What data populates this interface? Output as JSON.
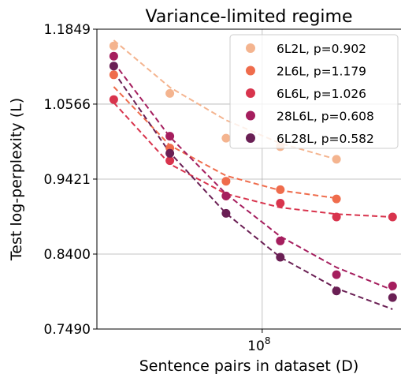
{
  "chart_data": {
    "type": "scatter",
    "title": "Variance-limited regime",
    "xlabel": "Sentence pairs in dataset (D)",
    "ylabel": "Test log-perplexity (L)",
    "x_scale": "log",
    "y_scale": "log",
    "xlim": [
      13000000,
      560000000
    ],
    "ylim": [
      0.749,
      1.1849
    ],
    "x_ticks": [
      {
        "base": "10",
        "exp": "8",
        "value": 100000000
      }
    ],
    "y_ticks": [
      {
        "label": "1.1849",
        "value": 1.1849
      },
      {
        "label": "1.0566",
        "value": 1.0566
      },
      {
        "label": "0.9421",
        "value": 0.9421
      },
      {
        "label": "0.8400",
        "value": 0.84
      },
      {
        "label": "0.7490",
        "value": 0.749
      }
    ],
    "grid": true,
    "legend": "top-right",
    "series": [
      {
        "name": "6L2L, p=0.902",
        "color": "#f4b48f",
        "x": [
          16000000,
          32000000,
          64000000,
          125000000,
          250000000
        ],
        "y": [
          1.155,
          1.074,
          1.003,
          0.99,
          0.971
        ],
        "fit": [
          1.165,
          1.084,
          1.031,
          0.995,
          0.971
        ]
      },
      {
        "name": "2L6L, p=1.179",
        "color": "#ef6c4c",
        "x": [
          16000000,
          32000000,
          64000000,
          125000000,
          250000000
        ],
        "y": [
          1.105,
          0.988,
          0.939,
          0.927,
          0.914
        ],
        "fit": [
          1.085,
          0.992,
          0.947,
          0.926,
          0.915
        ]
      },
      {
        "name": "6L6L, p=1.026",
        "color": "#d8344d",
        "x": [
          16000000,
          32000000,
          64000000,
          125000000,
          250000000,
          500000000
        ],
        "y": [
          1.064,
          0.969,
          0.918,
          0.908,
          0.889,
          0.889
        ],
        "fit": [
          1.059,
          0.964,
          0.921,
          0.902,
          0.893,
          0.889
        ]
      },
      {
        "name": "28L6L, p=0.608",
        "color": "#a51e5e",
        "x": [
          16000000,
          32000000,
          64000000,
          125000000,
          250000000,
          500000000
        ],
        "y": [
          1.137,
          1.006,
          0.918,
          0.857,
          0.814,
          0.8
        ],
        "fit": [
          1.126,
          1.005,
          0.921,
          0.863,
          0.823,
          0.795
        ]
      },
      {
        "name": "6L28L, p=0.582",
        "color": "#6a1f54",
        "x": [
          16000000,
          32000000,
          64000000,
          125000000,
          250000000,
          500000000
        ],
        "y": [
          1.12,
          0.98,
          0.894,
          0.836,
          0.794,
          0.786
        ],
        "fit": [
          1.11,
          0.981,
          0.894,
          0.836,
          0.797,
          0.772
        ]
      }
    ]
  }
}
